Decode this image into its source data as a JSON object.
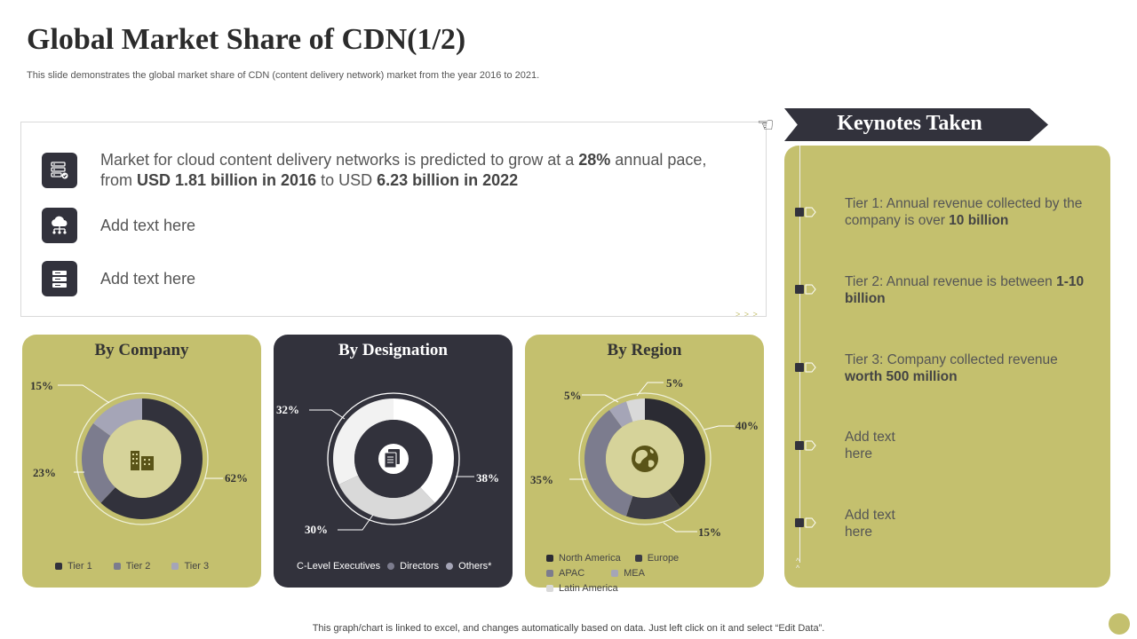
{
  "title": "Global Market Share of CDN(1/2)",
  "subtitle": "This slide demonstrates the global market share of CDN (content delivery network) market from the year 2016 to 2021.",
  "info": {
    "items": [
      {
        "icon": "server-icon",
        "t1": "Market for cloud content delivery networks is predicted to grow at a ",
        "b1": "28%",
        "t2": " annual pace, from ",
        "b2": "USD 1.81 billion in 2016",
        "t3": " to USD ",
        "b3": "6.23 billion in 2022"
      },
      {
        "icon": "cloud-network-icon",
        "text": "Add text here"
      },
      {
        "icon": "database-icon",
        "text": "Add text here"
      }
    ]
  },
  "keynotes": {
    "title": "Keynotes Taken",
    "items": [
      {
        "text": "Tier 1: Annual revenue collected by the company is over ",
        "bold": "10 billion"
      },
      {
        "text": "Tier 2: Annual revenue is between ",
        "bold": "1-10 billion"
      },
      {
        "text": "Tier 3: Company collected revenue ",
        "bold": "worth 500 million"
      },
      {
        "text": "Add text here",
        "bold": ""
      },
      {
        "text": "Add text here",
        "bold": ""
      }
    ]
  },
  "footer": "This graph/chart is linked to excel,  and changes automatically based on data. Just left click on it and select “Edit Data”.",
  "colors": {
    "olive": "#c4c06e",
    "dark": "#32323c"
  },
  "chart_data": [
    {
      "type": "pie",
      "title": "By Company",
      "categories": [
        "Tier 1",
        "Tier 2",
        "Tier 3"
      ],
      "values": [
        62,
        23,
        15
      ],
      "labels": [
        "62%",
        "23%",
        "15%"
      ],
      "colors": [
        "#32323c",
        "#7c7c8e",
        "#a5a5b7"
      ],
      "center_icon": "building-icon",
      "legend": "bottom"
    },
    {
      "type": "pie",
      "title": "By Designation",
      "categories": [
        "C-Level Executives",
        "Directors",
        "Others*"
      ],
      "values": [
        38,
        30,
        32
      ],
      "labels": [
        "38%",
        "30%",
        "32%"
      ],
      "colors": [
        "#ffffff",
        "#d9d9d9",
        "#f2f2f2"
      ],
      "center_icon": "document-icon",
      "legend": "bottom"
    },
    {
      "type": "pie",
      "title": "By Region",
      "categories": [
        "North America",
        "Europe",
        "APAC",
        "MEA",
        "Latin America"
      ],
      "values": [
        40,
        15,
        35,
        5,
        5
      ],
      "labels": [
        "40%",
        "15%",
        "35%",
        "5%",
        "5%"
      ],
      "colors": [
        "#2b2b33",
        "#3b3b45",
        "#7c7c8e",
        "#a5a5b7",
        "#d9d9d9"
      ],
      "center_icon": "globe-icon",
      "legend": "bottom"
    }
  ]
}
